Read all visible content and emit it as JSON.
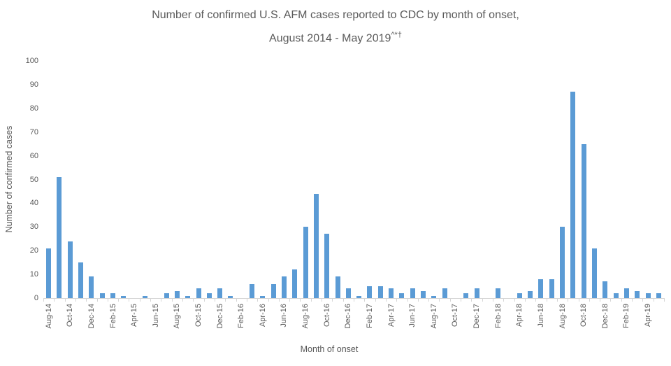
{
  "chart": {
    "title_line1": "Number of confirmed U.S. AFM cases reported to CDC by month of onset,",
    "title_line2_text": "August 2014 - May 2019",
    "title_footnote_marks": "^*†"
  },
  "chart_data": {
    "type": "bar",
    "title": "Number of confirmed U.S. AFM cases reported to CDC by month of onset, August 2014 - May 2019^*†",
    "xlabel": "Month of onset",
    "ylabel": "Number of confirmed cases",
    "ylim": [
      0,
      100
    ],
    "ytick_step": 10,
    "grid": false,
    "legend": "none",
    "x_label_interval": 2,
    "bar_color": "#5B9BD5",
    "axis_color": "#D6D6D6",
    "text_color": "#595959",
    "categories": [
      "Aug-14",
      "Sep-14",
      "Oct-14",
      "Nov-14",
      "Dec-14",
      "Jan-15",
      "Feb-15",
      "Mar-15",
      "Apr-15",
      "May-15",
      "Jun-15",
      "Jul-15",
      "Aug-15",
      "Sep-15",
      "Oct-15",
      "Nov-15",
      "Dec-15",
      "Jan-16",
      "Feb-16",
      "Mar-16",
      "Apr-16",
      "May-16",
      "Jun-16",
      "Jul-16",
      "Aug-16",
      "Sep-16",
      "Oct-16",
      "Nov-16",
      "Dec-16",
      "Jan-17",
      "Feb-17",
      "Mar-17",
      "Apr-17",
      "May-17",
      "Jun-17",
      "Jul-17",
      "Aug-17",
      "Sep-17",
      "Oct-17",
      "Nov-17",
      "Dec-17",
      "Jan-18",
      "Feb-18",
      "Mar-18",
      "Apr-18",
      "May-18",
      "Jun-18",
      "Jul-18",
      "Aug-18",
      "Sep-18",
      "Oct-18",
      "Nov-18",
      "Dec-18",
      "Jan-19",
      "Feb-19",
      "Mar-19",
      "Apr-19",
      "May-19"
    ],
    "values": [
      21,
      51,
      24,
      15,
      9,
      2,
      2,
      1,
      0,
      1,
      0,
      2,
      3,
      1,
      4,
      2,
      4,
      1,
      0,
      6,
      1,
      6,
      9,
      12,
      30,
      44,
      27,
      9,
      4,
      1,
      5,
      5,
      4,
      2,
      4,
      3,
      1,
      4,
      0,
      2,
      4,
      0,
      4,
      0,
      2,
      3,
      8,
      8,
      30,
      87,
      65,
      21,
      7,
      2,
      4,
      3,
      2,
      2
    ]
  }
}
